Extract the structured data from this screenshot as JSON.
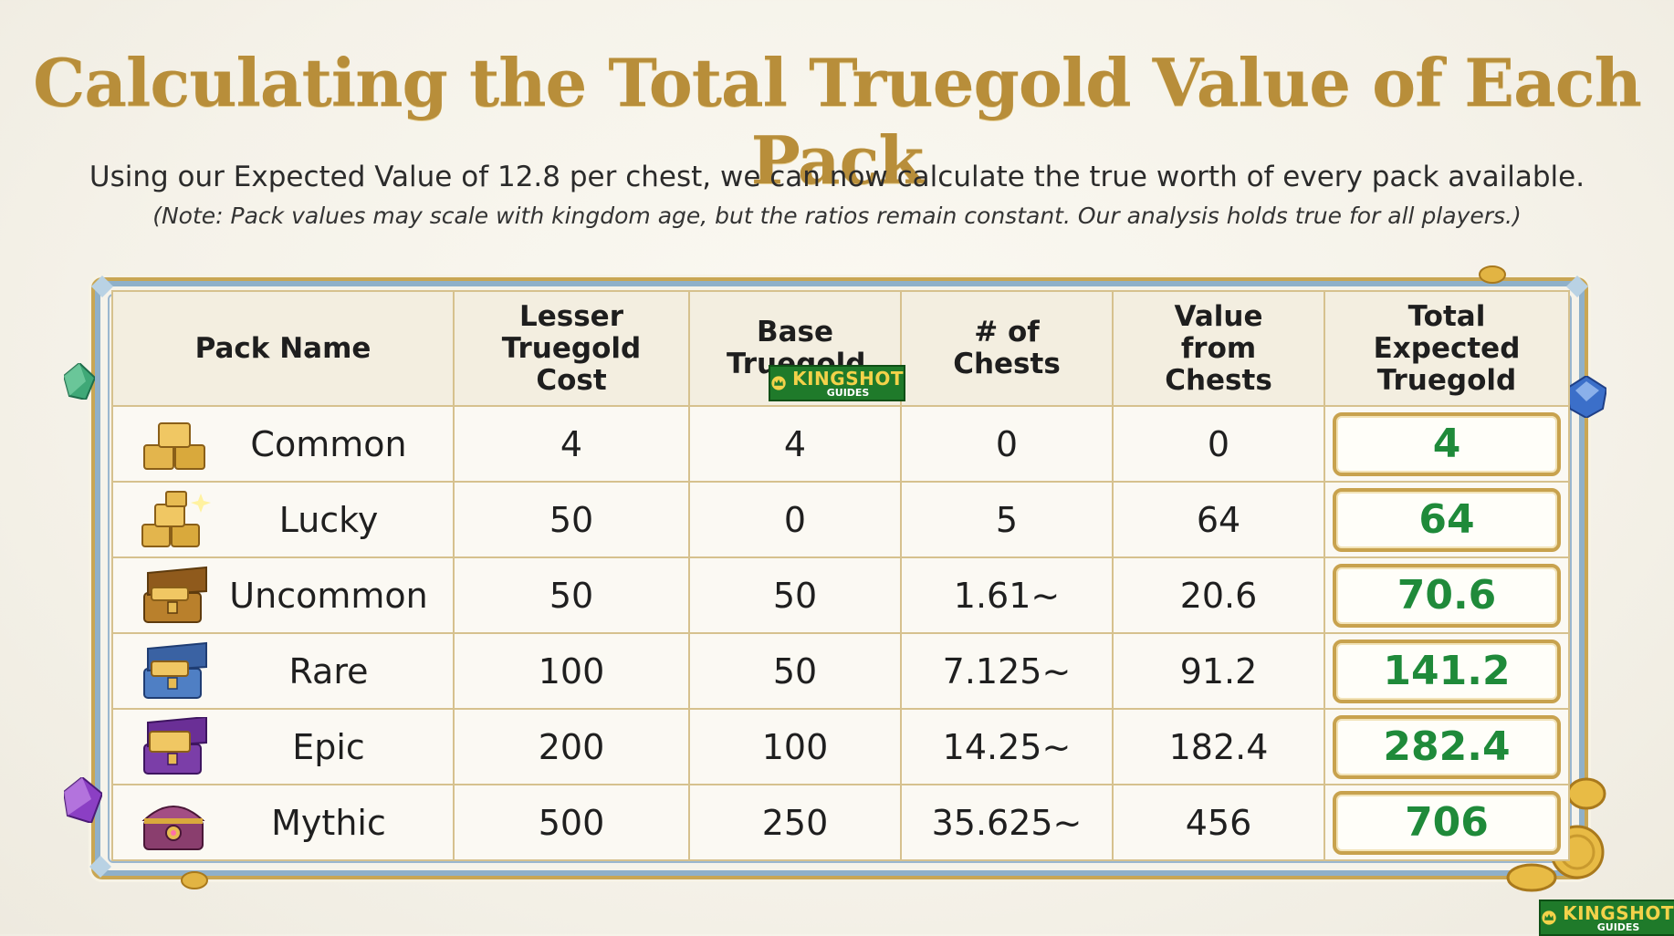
{
  "header": {
    "title": "Calculating the Total Truegold Value of Each Pack",
    "subtitle": "Using our Expected Value of 12.8 per chest, we can now calculate the true worth of every pack available.",
    "note": "(Note: Pack values may scale with kingdom age, but the ratios remain constant. Our analysis holds true for all players.)"
  },
  "table": {
    "columns": [
      "Pack Name",
      "Lesser Truegold Cost",
      "Base Truegold",
      "# of Chests",
      "Value from Chests",
      "Total Expected Truegold"
    ],
    "rows": [
      {
        "name": "Common",
        "icon": "gold-bars-icon",
        "lesser_cost": "4",
        "base": "4",
        "chests": "0",
        "value": "0",
        "total": "4"
      },
      {
        "name": "Lucky",
        "icon": "gold-bars-sparkle-icon",
        "lesser_cost": "50",
        "base": "0",
        "chests": "5",
        "value": "64",
        "total": "64"
      },
      {
        "name": "Uncommon",
        "icon": "gold-chest-icon",
        "lesser_cost": "50",
        "base": "50",
        "chests": "1.61~",
        "value": "20.6",
        "total": "70.6"
      },
      {
        "name": "Rare",
        "icon": "blue-chest-icon",
        "lesser_cost": "100",
        "base": "50",
        "chests": "7.125~",
        "value": "91.2",
        "total": "141.2"
      },
      {
        "name": "Epic",
        "icon": "purple-chest-icon",
        "lesser_cost": "200",
        "base": "100",
        "chests": "14.25~",
        "value": "182.4",
        "total": "282.4"
      },
      {
        "name": "Mythic",
        "icon": "mythic-chest-icon",
        "lesser_cost": "500",
        "base": "250",
        "chests": "35.625~",
        "value": "456",
        "total": "706"
      }
    ]
  },
  "watermark": {
    "brand": "KINGSHOT",
    "sub": "GUIDES"
  },
  "colors": {
    "title_gold": "#b88e3a",
    "total_green": "#1f8a3a",
    "border_gold": "#c9a653"
  }
}
